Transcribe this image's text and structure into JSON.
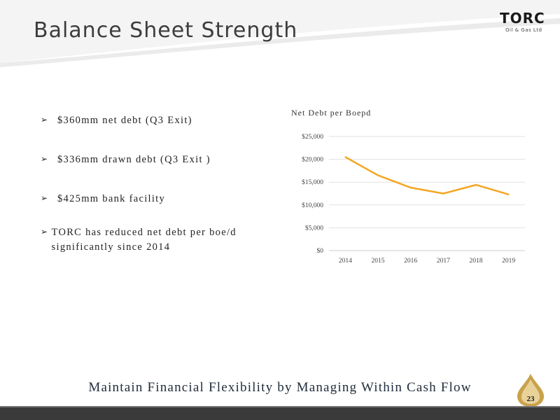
{
  "slide": {
    "title": "Balance Sheet Strength",
    "logo_text": "TORC",
    "logo_subtext": "Oil & Gas Ltd",
    "bullets": [
      {
        "text": "$360mm net debt (Q3 Exit)"
      },
      {
        "text": "$336mm drawn debt (Q3 Exit )"
      },
      {
        "text": "$425mm bank facility"
      },
      {
        "text": "TORC has reduced net debt per boe/d significantly since 2014"
      }
    ],
    "tagline": "Maintain Financial Flexibility by Managing Within Cash Flow",
    "page_number": "23"
  },
  "chart_data": {
    "type": "line",
    "title": "Net Debt per Boepd",
    "categories": [
      "2014",
      "2015",
      "2016",
      "2017",
      "2018",
      "2019"
    ],
    "series": [
      {
        "values": [
          20500,
          16500,
          13800,
          12500,
          14400,
          12300
        ]
      }
    ],
    "yticks": [
      "$0",
      "$5,000",
      "$10,000",
      "$15,000",
      "$20,000",
      "$25,000"
    ],
    "ylim": [
      0,
      25000
    ],
    "grid": true,
    "line_color": "#f5a623"
  }
}
